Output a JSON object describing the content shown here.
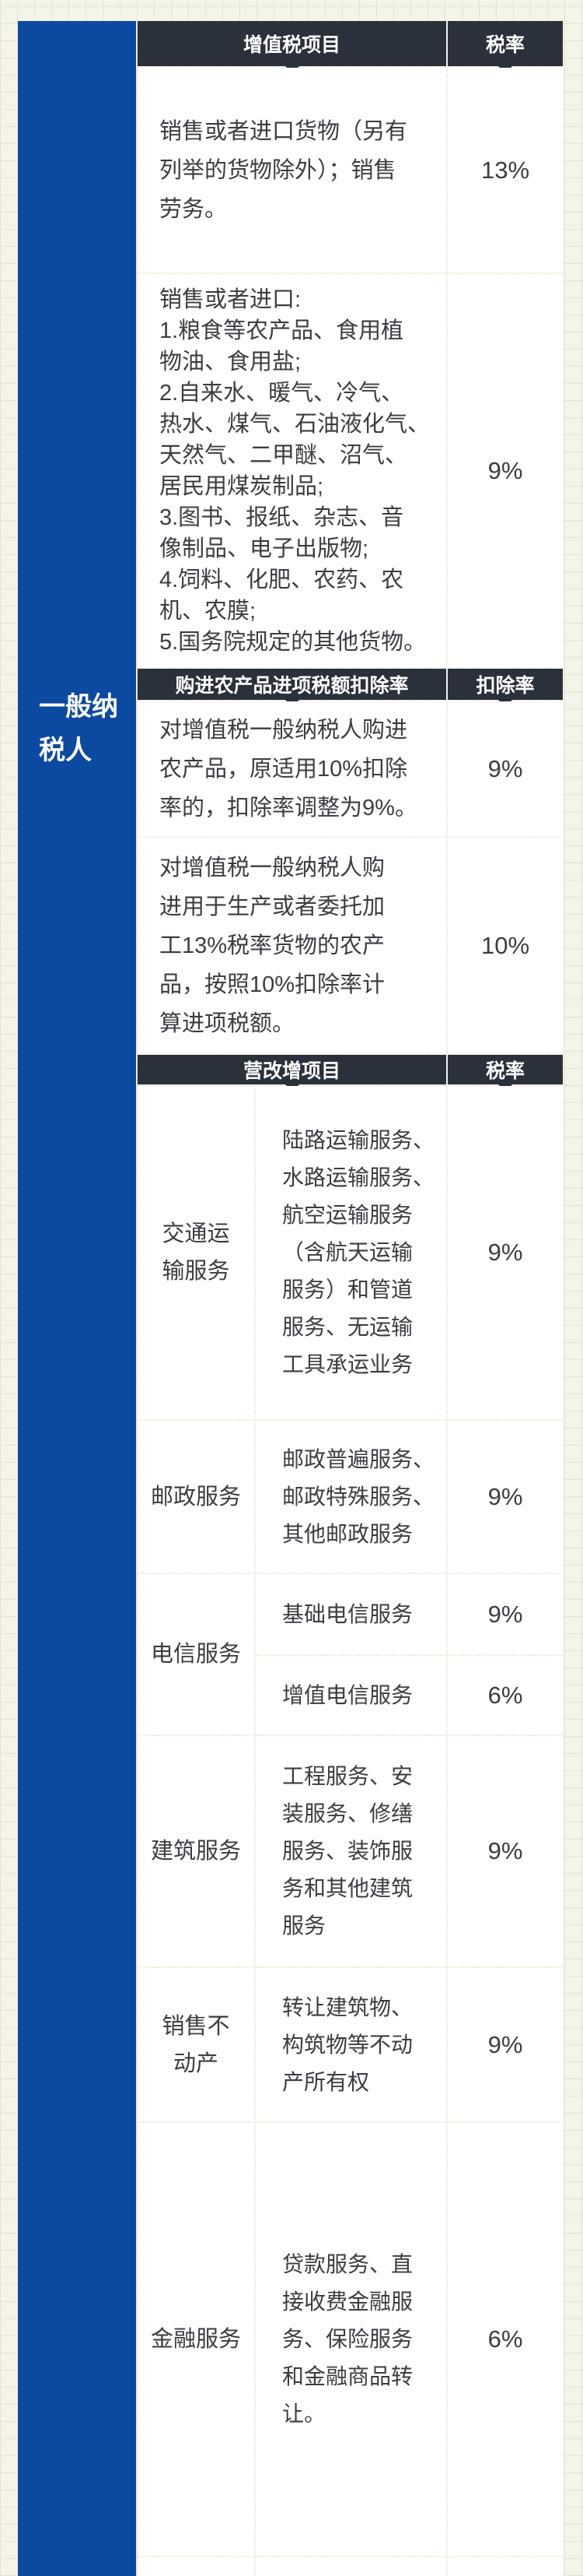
{
  "taxpayer_type": "一般纳\n税人",
  "vat_section": {
    "header_item": "增值税项目",
    "header_rate": "税率",
    "rows": [
      {
        "text": "销售或者进口货物（另有\n列举的货物除外）；销售\n劳务。",
        "rate": "13%"
      },
      {
        "text": "销售或者进口:\n1.粮食等农产品、食用植\n物油、食用盐;\n2.自来水、暖气、冷气、\n热水、煤气、石油液化气、\n天然气、二甲醚、沼气、\n居民用煤炭制品;\n3.图书、报纸、杂志、音\n像制品、电子出版物;\n4.饲料、化肥、农药、农\n机、农膜;\n5.国务院规定的其他货物。",
        "rate": "9%"
      }
    ]
  },
  "deduction_section": {
    "header_item": "购进农产品进项税额扣除率",
    "header_rate": "扣除率",
    "rows": [
      {
        "text": "对增值税一般纳税人购进\n农产品，原适用10%扣除\n率的，扣除率调整为9%。",
        "rate": "9%"
      },
      {
        "text": "对增值税一般纳税人购\n进用于生产或者委托加\n工13%税率货物的农产\n品，按照10%扣除率计\n算进项税额。",
        "rate": "10%"
      }
    ]
  },
  "reform_section": {
    "header_item": "营改增项目",
    "header_rate": "税率",
    "rows": [
      {
        "category": "交通运\n输服务",
        "items": [
          {
            "text": "陆路运输服务、\n水路运输服务、\n航空运输服务\n（含航天运输\n服务）和管道\n服务、无运输\n工具承运业务",
            "rate": "9%"
          }
        ]
      },
      {
        "category": "邮政服务",
        "items": [
          {
            "text": "邮政普遍服务、\n邮政特殊服务、\n其他邮政服务",
            "rate": "9%"
          }
        ]
      },
      {
        "category": "电信服务",
        "items": [
          {
            "text": "基础电信服务",
            "rate": "9%"
          },
          {
            "text": "增值电信服务",
            "rate": "6%"
          }
        ]
      },
      {
        "category": "建筑服务",
        "items": [
          {
            "text": "工程服务、安\n装服务、修缮\n服务、装饰服\n务和其他建筑\n服务",
            "rate": "9%"
          }
        ]
      },
      {
        "category": "销售不\n动产",
        "items": [
          {
            "text": "转让建筑物、\n构筑物等不动\n产所有权",
            "rate": "9%"
          }
        ]
      },
      {
        "category": "金融服务",
        "items": [
          {
            "text": "贷款服务、直\n接收费金融服\n务、保险服务\n和金融商品转\n让。",
            "rate": "6%"
          }
        ]
      }
    ]
  },
  "colors": {
    "sidebar": "#0c49a0",
    "header": "#2b313b",
    "background": "#f4f4e8"
  }
}
